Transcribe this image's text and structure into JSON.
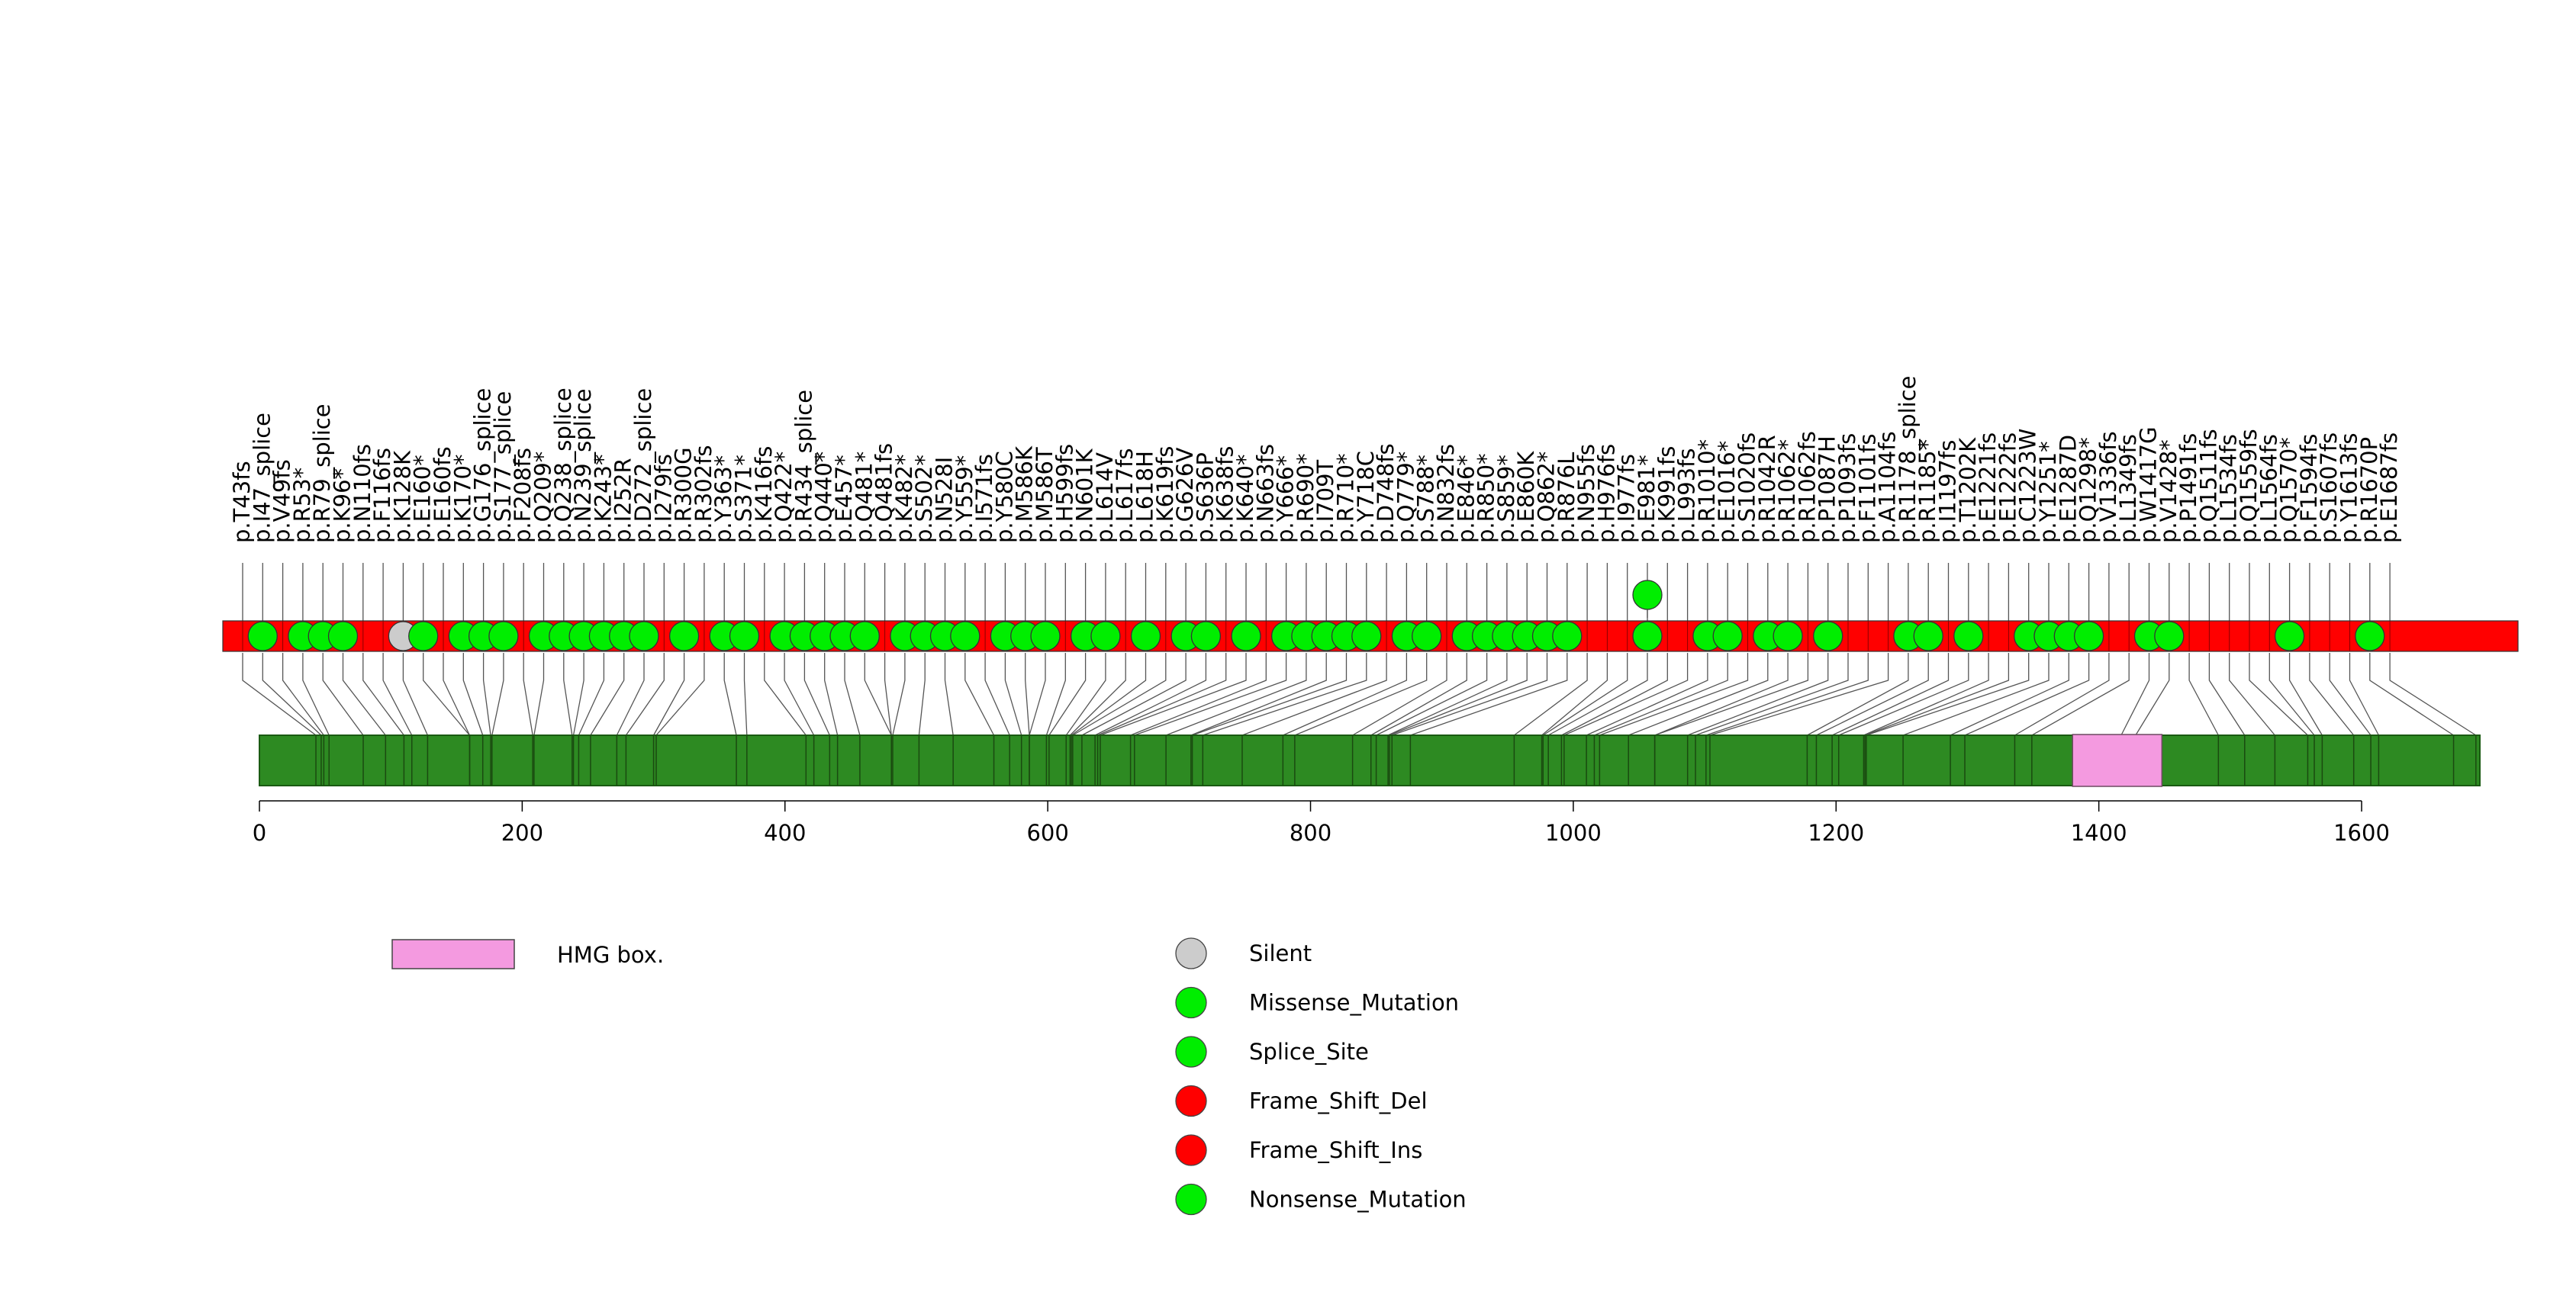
{
  "chart_data": {
    "type": "lollipop",
    "protein_length": 1690,
    "x_axis": {
      "range": [
        0,
        1690
      ],
      "ticks": [
        0,
        200,
        400,
        600,
        800,
        1000,
        1200,
        1400,
        1600
      ]
    },
    "domains": [
      {
        "name": "HMG box.",
        "start": 1380,
        "end": 1448,
        "color": "#f49ae0"
      }
    ],
    "legend": [
      {
        "label": "HMG box.",
        "kind": "rect",
        "color": "#f49ae0"
      },
      {
        "label": "Silent",
        "kind": "circle",
        "color": "#cccccc"
      },
      {
        "label": "Missense_Mutation",
        "kind": "circle",
        "color": "#00ee00"
      },
      {
        "label": "Splice_Site",
        "kind": "circle",
        "color": "#00ee00"
      },
      {
        "label": "Frame_Shift_Del",
        "kind": "circle",
        "color": "#ff0000"
      },
      {
        "label": "Frame_Shift_Ins",
        "kind": "circle",
        "color": "#ff0000"
      },
      {
        "label": "Nonsense_Mutation",
        "kind": "circle",
        "color": "#00ee00"
      }
    ],
    "colors": {
      "green": "#00ee00",
      "red": "#ff0000",
      "gray": "#cccccc",
      "backbone": "#2d8a22"
    },
    "mutations": [
      {
        "label": "p.T43fs",
        "pos": 43,
        "c": "red"
      },
      {
        "label": "p.I47_splice",
        "pos": 47,
        "c": "green"
      },
      {
        "label": "p.V49fs",
        "pos": 49,
        "c": "red"
      },
      {
        "label": "p.R53*",
        "pos": 53,
        "c": "green"
      },
      {
        "label": "p.R79_splice",
        "pos": 79,
        "c": "green"
      },
      {
        "label": "p.K96*",
        "pos": 96,
        "c": "green"
      },
      {
        "label": "p.N110fs",
        "pos": 110,
        "c": "red"
      },
      {
        "label": "p.F116fs",
        "pos": 116,
        "c": "red"
      },
      {
        "label": "p.K128K",
        "pos": 128,
        "c": "gray"
      },
      {
        "label": "p.E160*",
        "pos": 160,
        "c": "green"
      },
      {
        "label": "p.E160fs",
        "pos": 160,
        "c": "red"
      },
      {
        "label": "p.K170*",
        "pos": 170,
        "c": "green"
      },
      {
        "label": "p.G176_splice",
        "pos": 176,
        "c": "green"
      },
      {
        "label": "p.S177_splice",
        "pos": 177,
        "c": "green"
      },
      {
        "label": "p.F208fs",
        "pos": 208,
        "c": "red"
      },
      {
        "label": "p.Q209*",
        "pos": 209,
        "c": "green"
      },
      {
        "label": "p.Q238_splice",
        "pos": 238,
        "c": "green"
      },
      {
        "label": "p.N239_splice",
        "pos": 239,
        "c": "green"
      },
      {
        "label": "p.K243*",
        "pos": 243,
        "c": "green"
      },
      {
        "label": "p.I252R",
        "pos": 252,
        "c": "green"
      },
      {
        "label": "p.D272_splice",
        "pos": 272,
        "c": "green"
      },
      {
        "label": "p.I279fs",
        "pos": 279,
        "c": "red"
      },
      {
        "label": "p.R300G",
        "pos": 300,
        "c": "green"
      },
      {
        "label": "p.R302fs",
        "pos": 302,
        "c": "red"
      },
      {
        "label": "p.Y363*",
        "pos": 363,
        "c": "green"
      },
      {
        "label": "p.S371*",
        "pos": 371,
        "c": "green"
      },
      {
        "label": "p.K416fs",
        "pos": 416,
        "c": "red"
      },
      {
        "label": "p.Q422*",
        "pos": 422,
        "c": "green"
      },
      {
        "label": "p.R434_splice",
        "pos": 434,
        "c": "green"
      },
      {
        "label": "p.Q440*",
        "pos": 440,
        "c": "green"
      },
      {
        "label": "p.E457*",
        "pos": 457,
        "c": "green"
      },
      {
        "label": "p.Q481*",
        "pos": 481,
        "c": "green"
      },
      {
        "label": "p.Q481fs",
        "pos": 481,
        "c": "red"
      },
      {
        "label": "p.K482*",
        "pos": 482,
        "c": "green"
      },
      {
        "label": "p.S502*",
        "pos": 502,
        "c": "green"
      },
      {
        "label": "p.N528I",
        "pos": 528,
        "c": "green"
      },
      {
        "label": "p.Y559*",
        "pos": 559,
        "c": "green"
      },
      {
        "label": "p.I571fs",
        "pos": 571,
        "c": "red"
      },
      {
        "label": "p.Y580C",
        "pos": 580,
        "c": "green"
      },
      {
        "label": "p.M586K",
        "pos": 586,
        "c": "green"
      },
      {
        "label": "p.M586T",
        "pos": 586,
        "c": "green"
      },
      {
        "label": "p.H599fs",
        "pos": 599,
        "c": "red"
      },
      {
        "label": "p.N601K",
        "pos": 601,
        "c": "green"
      },
      {
        "label": "p.L614V",
        "pos": 614,
        "c": "green"
      },
      {
        "label": "p.L617fs",
        "pos": 617,
        "c": "red"
      },
      {
        "label": "p.L618H",
        "pos": 618,
        "c": "green"
      },
      {
        "label": "p.K619fs",
        "pos": 619,
        "c": "red"
      },
      {
        "label": "p.G626V",
        "pos": 626,
        "c": "green"
      },
      {
        "label": "p.S636P",
        "pos": 636,
        "c": "green"
      },
      {
        "label": "p.K638fs",
        "pos": 638,
        "c": "red"
      },
      {
        "label": "p.K640*",
        "pos": 640,
        "c": "green"
      },
      {
        "label": "p.N663fs",
        "pos": 663,
        "c": "red"
      },
      {
        "label": "p.Y666*",
        "pos": 666,
        "c": "green"
      },
      {
        "label": "p.R690*",
        "pos": 690,
        "c": "green"
      },
      {
        "label": "p.I709T",
        "pos": 709,
        "c": "green"
      },
      {
        "label": "p.R710*",
        "pos": 710,
        "c": "green"
      },
      {
        "label": "p.Y718C",
        "pos": 718,
        "c": "green"
      },
      {
        "label": "p.D748fs",
        "pos": 748,
        "c": "red"
      },
      {
        "label": "p.Q779*",
        "pos": 779,
        "c": "green"
      },
      {
        "label": "p.S788*",
        "pos": 788,
        "c": "green"
      },
      {
        "label": "p.N832fs",
        "pos": 832,
        "c": "red"
      },
      {
        "label": "p.E846*",
        "pos": 846,
        "c": "green"
      },
      {
        "label": "p.R850*",
        "pos": 850,
        "c": "green"
      },
      {
        "label": "p.S859*",
        "pos": 859,
        "c": "green"
      },
      {
        "label": "p.E860K",
        "pos": 860,
        "c": "green"
      },
      {
        "label": "p.Q862*",
        "pos": 862,
        "c": "green"
      },
      {
        "label": "p.R876L",
        "pos": 876,
        "c": "green"
      },
      {
        "label": "p.N955fs",
        "pos": 955,
        "c": "red"
      },
      {
        "label": "p.H976fs",
        "pos": 976,
        "c": "red"
      },
      {
        "label": "p.I977fs",
        "pos": 977,
        "c": "red"
      },
      {
        "label": "p.E981*",
        "pos": 981,
        "c": "green"
      },
      {
        "label": "p.K991fs",
        "pos": 991,
        "c": "red"
      },
      {
        "label": "p.L993fs",
        "pos": 993,
        "c": "red"
      },
      {
        "label": "p.R1010*",
        "pos": 1010,
        "c": "green"
      },
      {
        "label": "p.E1016*",
        "pos": 1016,
        "c": "green"
      },
      {
        "label": "p.S1020fs",
        "pos": 1020,
        "c": "red"
      },
      {
        "label": "p.R1042R",
        "pos": 1042,
        "c": "green"
      },
      {
        "label": "p.R1062*",
        "pos": 1062,
        "c": "green"
      },
      {
        "label": "p.R1062fs",
        "pos": 1062,
        "c": "red"
      },
      {
        "label": "p.P1087H",
        "pos": 1087,
        "c": "green"
      },
      {
        "label": "p.P1093fs",
        "pos": 1093,
        "c": "red"
      },
      {
        "label": "p.F1101fs",
        "pos": 1101,
        "c": "red"
      },
      {
        "label": "p.A1104fs",
        "pos": 1104,
        "c": "red"
      },
      {
        "label": "p.R1178_splice",
        "pos": 1178,
        "c": "green"
      },
      {
        "label": "p.R1185*",
        "pos": 1185,
        "c": "green"
      },
      {
        "label": "p.I1197fs",
        "pos": 1197,
        "c": "red"
      },
      {
        "label": "p.T1202K",
        "pos": 1202,
        "c": "green"
      },
      {
        "label": "p.E1221fs",
        "pos": 1221,
        "c": "red"
      },
      {
        "label": "p.E1222fs",
        "pos": 1222,
        "c": "red"
      },
      {
        "label": "p.C1223W",
        "pos": 1223,
        "c": "green"
      },
      {
        "label": "p.Y1251*",
        "pos": 1251,
        "c": "green"
      },
      {
        "label": "p.E1287D",
        "pos": 1287,
        "c": "green"
      },
      {
        "label": "p.Q1298*",
        "pos": 1298,
        "c": "green"
      },
      {
        "label": "p.V1336fs",
        "pos": 1336,
        "c": "red"
      },
      {
        "label": "p.L1349fs",
        "pos": 1349,
        "c": "red"
      },
      {
        "label": "p.W1417G",
        "pos": 1417,
        "c": "green"
      },
      {
        "label": "p.V1428*",
        "pos": 1428,
        "c": "green"
      },
      {
        "label": "p.P1491fs",
        "pos": 1491,
        "c": "red"
      },
      {
        "label": "p.Q1511fs",
        "pos": 1511,
        "c": "red"
      },
      {
        "label": "p.L1534fs",
        "pos": 1534,
        "c": "red"
      },
      {
        "label": "p.Q1559fs",
        "pos": 1559,
        "c": "red"
      },
      {
        "label": "p.L1564fs",
        "pos": 1564,
        "c": "red"
      },
      {
        "label": "p.Q1570*",
        "pos": 1570,
        "c": "green"
      },
      {
        "label": "p.F1594fs",
        "pos": 1594,
        "c": "red"
      },
      {
        "label": "p.S1607fs",
        "pos": 1607,
        "c": "red"
      },
      {
        "label": "p.Y1613fs",
        "pos": 1613,
        "c": "red"
      },
      {
        "label": "p.R1670P",
        "pos": 1670,
        "c": "green"
      },
      {
        "label": "p.E1687fs",
        "pos": 1687,
        "c": "red"
      }
    ],
    "stacked": [
      {
        "pos": 981,
        "c": "green",
        "level": 2
      }
    ]
  }
}
